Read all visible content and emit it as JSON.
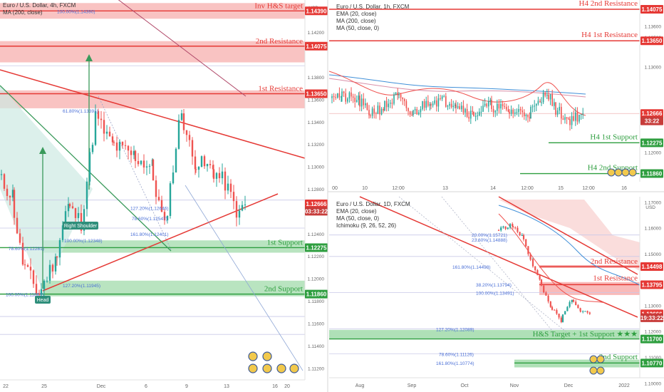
{
  "colors": {
    "resistance": "#e53935",
    "support": "#2e9e3f",
    "zone_red": "#f7a9a8",
    "zone_green": "#9bd8a5",
    "ema20": "#ef5350",
    "ma200": "#b14a6a",
    "ma50": "#3f8fd8",
    "up": "#26a69a",
    "down": "#ef5350",
    "fib": "#4a6fd6",
    "price_tag": "#e53935"
  },
  "panels": [
    {
      "id": "4h",
      "header": [
        "Euro / U.S. Dollar, 4h, FXCM",
        "MA (200, close)"
      ],
      "axis_unit": "USD",
      "yticks": [
        "1.14400",
        "1.14200",
        "1.13800",
        "1.13600",
        "1.13400",
        "1.13200",
        "1.13000",
        "1.12800",
        "1.12600",
        "1.12400",
        "1.12200",
        "1.12000",
        "1.11800",
        "1.11600",
        "1.11400",
        "1.11200"
      ],
      "xticks": [
        "22",
        "25",
        "Dec",
        "6",
        "9",
        "13",
        "16",
        "20"
      ],
      "price_tags": [
        "1.14390",
        "1.14075",
        "1.13650",
        "1.12666",
        "03:33:22",
        "1.12275",
        "1.11860"
      ],
      "levels": [
        "Inv H&S target",
        "2nd Resistance",
        "1st Resistance",
        "1st Support",
        "2nd Support"
      ],
      "fibs": [
        "100.00%(1.14390)",
        "61.80%(1.13391)",
        "127.20%(1.12646)",
        "78.60%(1.12547)",
        "161.80%(1.12401)",
        "100.00%(1.12348)",
        "78.60%(1.12281)",
        "127.20%(1.11945)",
        "100.00%(1.11861)"
      ],
      "callouts": [
        "Right Shoulder",
        "Head"
      ]
    },
    {
      "id": "1h",
      "header": [
        "Euro / U.S. Dollar, 1h, FXCM",
        "EMA (20, close)",
        "MA (200, close)",
        "MA (50, close, 0)"
      ],
      "axis_unit": "USD",
      "yticks": [
        "1.14600",
        "1.13600",
        "1.13500",
        "1.13000",
        "1.12400",
        "1.12000"
      ],
      "xticks": [
        "00",
        "10",
        "12:00",
        "13",
        "14",
        "12:00",
        "15",
        "12:00",
        "16"
      ],
      "price_tags": [
        "1.14075",
        "1.13650",
        "1.12666",
        "33:22",
        "1.12275",
        "1.11860"
      ],
      "levels": [
        "H4 2nd Resistance",
        "H4 1st Resistance",
        "H4 1st Support",
        "H4 2nd Support"
      ]
    },
    {
      "id": "1d",
      "header": [
        "Euro / U.S. Dollar, 1D, FXCM",
        "EMA (20, close)",
        "MA (50, close, 0)",
        "Ichimoku (9, 26, 52, 26)"
      ],
      "axis_unit": "USD",
      "yticks": [
        "1.17000",
        "1.16000",
        "1.15000",
        "1.13000",
        "1.12000",
        "1.11000",
        "1.10000"
      ],
      "xticks": [
        "Aug",
        "Sep",
        "Oct",
        "Nov",
        "Dec",
        "2022"
      ],
      "price_tags": [
        "1.14498",
        "1.13795",
        "1.12666",
        "19:33:22",
        "1.11700",
        "1.10770"
      ],
      "levels": [
        "2nd Resistance",
        "1st Resistance",
        "H&S Target + 1st Support ★★★",
        "2nd Support"
      ],
      "fibs": [
        "20.00%(1.15721)",
        "23.60%(1.14888)",
        "161.80%(1.14498)",
        "38.20%(1.13794)",
        "100.00%(1.13491)",
        "127.20%(1.12089)",
        "78.60%(1.11126)",
        "161.80%(1.10774)"
      ]
    }
  ],
  "chart_data": [
    {
      "type": "line",
      "title": "Euro / U.S. Dollar, 4h, FXCM",
      "timeframe": "4h",
      "ylim": [
        1.111,
        1.145
      ],
      "x": [
        "22",
        "25",
        "Dec",
        "6",
        "9",
        "13",
        "16",
        "20"
      ],
      "series": [
        {
          "name": "close (approx)",
          "values": [
            1.127,
            1.119,
            1.132,
            1.1335,
            1.134,
            1.13,
            1.1267,
            1.1267
          ]
        }
      ],
      "levels": [
        {
          "label": "Inv H&S target",
          "value": 1.1439
        },
        {
          "label": "2nd Resistance",
          "value": 1.14075
        },
        {
          "label": "1st Resistance",
          "value": 1.1365
        },
        {
          "label": "1st Support",
          "value": 1.12275
        },
        {
          "label": "2nd Support",
          "value": 1.1186
        }
      ],
      "last_price": 1.12666
    },
    {
      "type": "line",
      "title": "Euro / U.S. Dollar, 1h, FXCM",
      "timeframe": "1h",
      "ylim": [
        1.118,
        1.142
      ],
      "levels": [
        {
          "label": "H4 2nd Resistance",
          "value": 1.14075
        },
        {
          "label": "H4 1st Resistance",
          "value": 1.1365
        },
        {
          "label": "H4 1st Support",
          "value": 1.12275
        },
        {
          "label": "H4 2nd Support",
          "value": 1.1186
        }
      ],
      "last_price": 1.12666
    },
    {
      "type": "line",
      "title": "Euro / U.S. Dollar, 1D, FXCM",
      "timeframe": "1D",
      "ylim": [
        1.102,
        1.172
      ],
      "x": [
        "Aug",
        "Sep",
        "Oct",
        "Nov",
        "Dec",
        "2022"
      ],
      "levels": [
        {
          "label": "2nd Resistance",
          "value": 1.14498
        },
        {
          "label": "1st Resistance",
          "value": 1.13795
        },
        {
          "label": "H&S Target + 1st Support ★★★",
          "value": 1.117
        },
        {
          "label": "2nd Support",
          "value": 1.1077
        }
      ],
      "last_price": 1.12666
    }
  ]
}
